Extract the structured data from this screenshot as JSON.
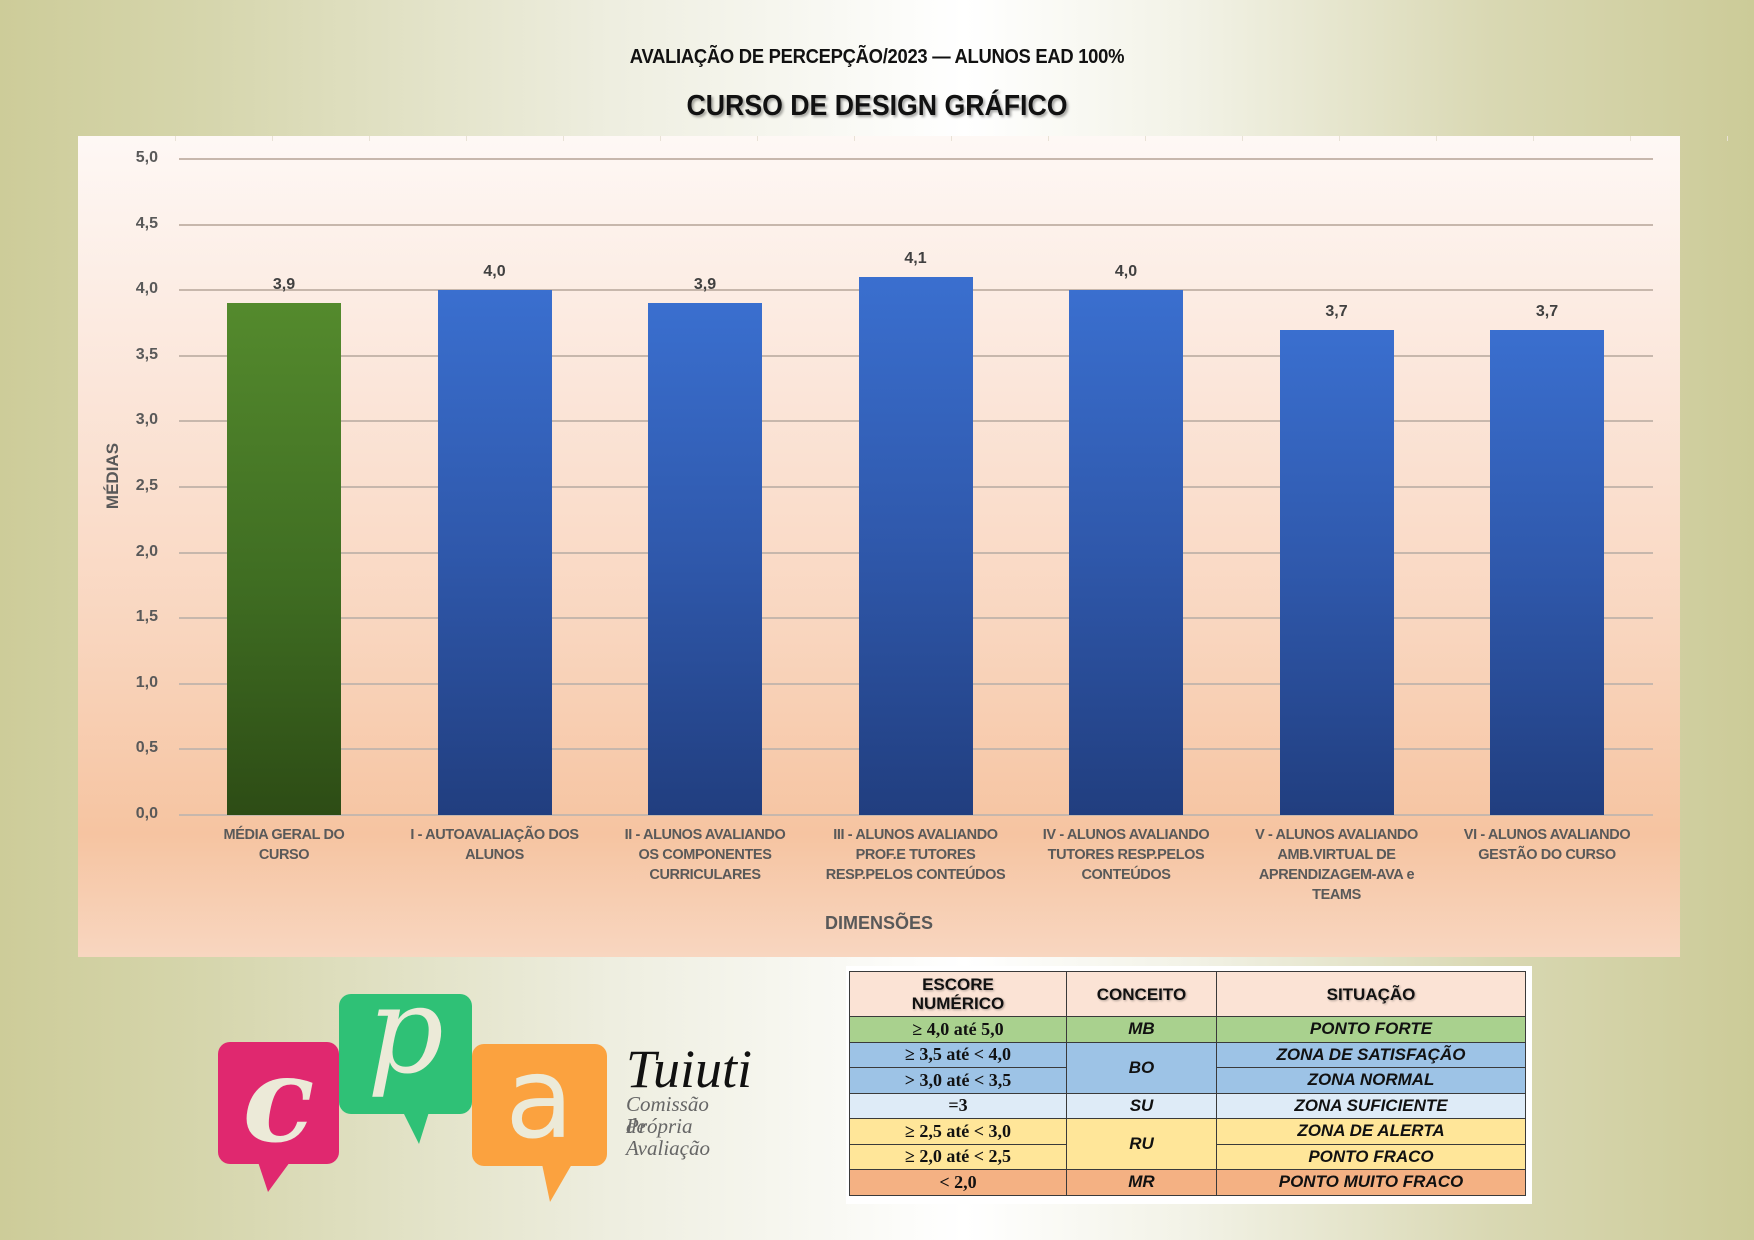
{
  "header": {
    "subtitle": "AVALIAÇÃO DE PERCEPÇÃO/2023 — ALUNOS EAD 100%",
    "title": "CURSO DE DESIGN GRÁFICO"
  },
  "chart_data": {
    "type": "bar",
    "title": "CURSO DE DESIGN GRÁFICO",
    "subtitle": "AVALIAÇÃO DE PERCEPÇÃO/2023 — ALUNOS EAD 100%",
    "xlabel": "DIMENSÕES",
    "ylabel": "MÉDIAS",
    "ylim": [
      0,
      5
    ],
    "yticks": [
      "0,0",
      "0,5",
      "1,0",
      "1,5",
      "2,0",
      "2,5",
      "3,0",
      "3,5",
      "4,0",
      "4,5",
      "5,0"
    ],
    "grid": true,
    "legend": "none",
    "categories": [
      "MÉDIA GERAL DO\nCURSO",
      "I - AUTOAVALIAÇÃO DOS\nALUNOS",
      "II - ALUNOS AVALIANDO\nOS COMPONENTES\nCURRICULARES",
      "III - ALUNOS AVALIANDO\nPROF.E TUTORES\nRESP.PELOS CONTEÚDOS",
      "IV - ALUNOS AVALIANDO\nTUTORES RESP.PELOS\nCONTEÚDOS",
      "V  - ALUNOS AVALIANDO\nAMB.VIRTUAL DE\nAPRENDIZAGEM-AVA e\nTEAMS",
      "VI - ALUNOS AVALIANDO\nGESTÃO DO CURSO"
    ],
    "values": [
      3.9,
      4.0,
      3.9,
      4.1,
      4.0,
      3.7,
      3.7
    ],
    "value_labels": [
      "3,9",
      "4,0",
      "3,9",
      "4,1",
      "4,0",
      "3,7",
      "3,7"
    ],
    "bar_colors": [
      "#4a7a27",
      "#3165c0",
      "#3165c0",
      "#3165c0",
      "#3165c0",
      "#3165c0",
      "#3165c0"
    ]
  },
  "logo": {
    "letters": [
      "c",
      "p",
      "a"
    ],
    "colors": [
      "#e0286f",
      "#2fc176",
      "#fba23f"
    ],
    "brand": "Tuiuti",
    "sub_line1": "Comissão Própria",
    "sub_line2": "de Avaliação"
  },
  "legend_table": {
    "headers": [
      "ESCORE\nNUMÉRICO",
      "CONCEITO",
      "SITUAÇÃO"
    ],
    "rows": [
      {
        "range": "≥ 4,0 até 5,0",
        "concept": "MB",
        "situation": "PONTO FORTE",
        "color": "#a9d18e"
      },
      {
        "range": "≥ 3,5 até < 4,0",
        "concept": "BO",
        "situation": "ZONA DE SATISFAÇÃO",
        "color": "#9dc3e6"
      },
      {
        "range": "> 3,0 até < 3,5",
        "concept": "BO",
        "situation": "ZONA NORMAL",
        "color": "#9dc3e6"
      },
      {
        "range": "=3",
        "concept": "SU",
        "situation": "ZONA SUFICIENTE",
        "color": "#deebf7"
      },
      {
        "range": "≥ 2,5 até < 3,0",
        "concept": "RU",
        "situation": "ZONA DE ALERTA",
        "color": "#ffe699"
      },
      {
        "range": "≥ 2,0 até < 2,5",
        "concept": "RU",
        "situation": "PONTO FRACO",
        "color": "#ffe699"
      },
      {
        "range": "< 2,0",
        "concept": "MR",
        "situation": "PONTO MUITO FRACO",
        "color": "#f4b183"
      }
    ]
  }
}
